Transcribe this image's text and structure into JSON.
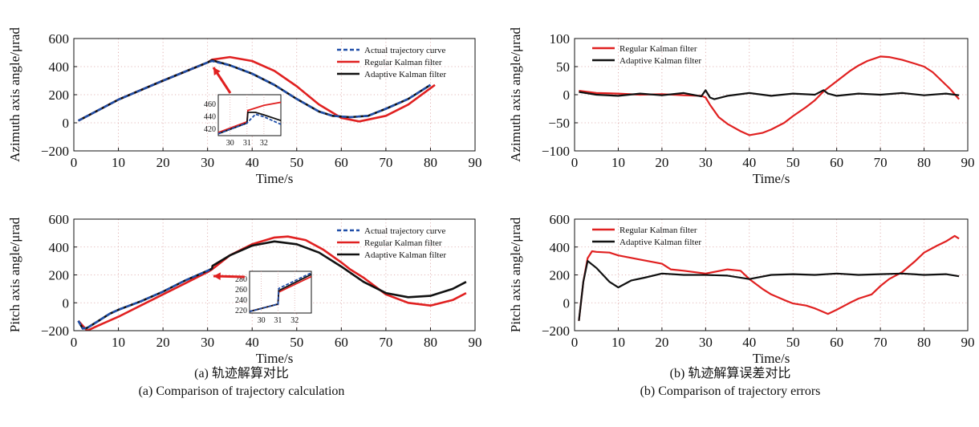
{
  "colors": {
    "actual": "#1f4ea8",
    "regular": "#e02020",
    "adaptive": "#111111",
    "grid": "#d9a0a0"
  },
  "captions": {
    "a_cn": "(a) 轨迹解算对比",
    "a_en": "(a) Comparison of trajectory calculation",
    "b_cn": "(b) 轨迹解算误差对比",
    "b_en": "(b) Comparison of trajectory errors"
  },
  "chart_data": [
    {
      "id": "a_top",
      "type": "line",
      "xlabel": "Time/s",
      "ylabel": "Azimuth axis angle/μrad",
      "xlim": [
        0,
        90
      ],
      "ylim": [
        -200,
        600
      ],
      "xticks": [
        0,
        10,
        20,
        30,
        40,
        50,
        60,
        70,
        80,
        90
      ],
      "yticks": [
        -200,
        0,
        200,
        400,
        600
      ],
      "legend": "top-right",
      "series": [
        {
          "name": "Actual trajectory curve",
          "style": "dashed",
          "color": "#1f4ea8",
          "x": [
            1,
            10,
            20,
            30,
            31,
            35,
            40,
            45,
            50,
            55,
            58,
            62,
            66,
            70,
            75,
            80
          ],
          "y": [
            15,
            165,
            300,
            430,
            440,
            410,
            350,
            270,
            170,
            80,
            50,
            40,
            50,
            100,
            170,
            270
          ]
        },
        {
          "name": "Regular Kalman filter",
          "style": "solid",
          "color": "#e02020",
          "x": [
            1,
            10,
            20,
            30,
            31,
            35,
            40,
            45,
            50,
            55,
            60,
            64,
            70,
            75,
            81
          ],
          "y": [
            15,
            165,
            300,
            430,
            450,
            468,
            440,
            370,
            260,
            130,
            35,
            10,
            50,
            130,
            270
          ]
        },
        {
          "name": "Adaptive Kalman filter",
          "style": "solid",
          "color": "#111111",
          "x": [
            1,
            10,
            20,
            30,
            31,
            35,
            40,
            45,
            50,
            55,
            58,
            62,
            66,
            70,
            75,
            80
          ],
          "y": [
            15,
            165,
            300,
            430,
            445,
            410,
            350,
            270,
            170,
            80,
            50,
            40,
            50,
            100,
            170,
            270
          ]
        }
      ],
      "inset": {
        "xlim": [
          29.3,
          33
        ],
        "ylim": [
          410,
          475
        ],
        "xticks": [
          30,
          31,
          32
        ],
        "yticks": [
          420,
          440,
          460
        ],
        "series": [
          {
            "name": "Actual trajectory curve",
            "x": [
              29.3,
              31,
              31.5,
              32,
              32.5,
              33
            ],
            "y": [
              413,
              430,
              444,
              440,
              434,
              428
            ]
          },
          {
            "name": "Regular Kalman filter",
            "x": [
              29.3,
              31,
              31.05,
              32,
              33
            ],
            "y": [
              415,
              432,
              450,
              458,
              463
            ]
          },
          {
            "name": "Adaptive Kalman filter",
            "x": [
              29.3,
              31,
              31.05,
              31.5,
              32,
              33
            ],
            "y": [
              413,
              430,
              447,
              447,
              443,
              434
            ]
          }
        ]
      }
    },
    {
      "id": "a_bottom",
      "type": "line",
      "xlabel": "Time/s",
      "ylabel": "Pitch axis angle/μrad",
      "xlim": [
        0,
        90
      ],
      "ylim": [
        -200,
        600
      ],
      "xticks": [
        0,
        10,
        20,
        30,
        40,
        50,
        60,
        70,
        80,
        90
      ],
      "yticks": [
        -200,
        0,
        200,
        400,
        600
      ],
      "legend": "top-right",
      "series": [
        {
          "name": "Actual trajectory curve",
          "style": "dashed",
          "color": "#1f4ea8",
          "x": [
            1,
            2,
            3,
            5,
            8,
            10,
            15,
            20,
            25,
            30,
            31
          ],
          "y": [
            -130,
            -185,
            -180,
            -140,
            -80,
            -50,
            10,
            80,
            160,
            230,
            245
          ]
        },
        {
          "name": "Regular Kalman filter",
          "style": "solid",
          "color": "#e02020",
          "x": [
            1,
            3,
            5,
            10,
            15,
            20,
            25,
            30,
            31,
            35,
            40,
            45,
            48,
            52,
            56,
            60,
            62,
            65,
            70,
            75,
            80,
            85,
            88
          ],
          "y": [
            -130,
            -200,
            -170,
            -100,
            -20,
            60,
            140,
            220,
            240,
            340,
            420,
            468,
            475,
            450,
            380,
            290,
            240,
            180,
            60,
            0,
            -20,
            20,
            70
          ]
        },
        {
          "name": "Adaptive Kalman filter",
          "style": "solid",
          "color": "#111111",
          "x": [
            1,
            2,
            3,
            5,
            8,
            10,
            15,
            20,
            25,
            30,
            31,
            31.1,
            35,
            40,
            45,
            50,
            55,
            60,
            65,
            70,
            75,
            80,
            85,
            88
          ],
          "y": [
            -130,
            -185,
            -180,
            -140,
            -80,
            -50,
            10,
            80,
            160,
            230,
            245,
            265,
            340,
            410,
            440,
            420,
            360,
            260,
            150,
            70,
            40,
            50,
            100,
            150
          ]
        }
      ],
      "inset": {
        "xlim": [
          29.3,
          33
        ],
        "ylim": [
          215,
          295
        ],
        "xticks": [
          30,
          31,
          32
        ],
        "yticks": [
          220,
          240,
          260,
          280
        ],
        "series": [
          {
            "name": "Actual trajectory curve",
            "x": [
              29.3,
              31,
              31.05,
              33
            ],
            "y": [
              218,
              232,
              262,
              292
            ]
          },
          {
            "name": "Regular Kalman filter",
            "x": [
              29.3,
              31,
              31.05,
              33
            ],
            "y": [
              218,
              232,
              255,
              285
            ]
          },
          {
            "name": "Adaptive Kalman filter",
            "x": [
              29.3,
              31,
              31.05,
              33
            ],
            "y": [
              218,
              232,
              258,
              289
            ]
          }
        ]
      }
    },
    {
      "id": "b_top",
      "type": "line",
      "xlabel": "Time/s",
      "ylabel": "Azimuth axis angle/μrad",
      "xlim": [
        0,
        90
      ],
      "ylim": [
        -100,
        100
      ],
      "xticks": [
        0,
        10,
        20,
        30,
        40,
        50,
        60,
        70,
        80,
        90
      ],
      "yticks": [
        -100,
        -50,
        0,
        50,
        100
      ],
      "legend": "top-left",
      "series": [
        {
          "name": "Regular Kalman filter",
          "style": "solid",
          "color": "#e02020",
          "x": [
            1,
            5,
            10,
            15,
            20,
            25,
            29,
            30,
            31,
            33,
            35,
            38,
            40,
            43,
            45,
            48,
            50,
            53,
            55,
            56,
            57,
            59,
            61,
            63,
            65,
            67,
            70,
            72,
            75,
            78,
            80,
            82,
            84,
            86,
            88
          ],
          "y": [
            7,
            3,
            2,
            0,
            1,
            -1,
            -2,
            -5,
            -18,
            -40,
            -52,
            -65,
            -72,
            -68,
            -62,
            -50,
            -38,
            -22,
            -10,
            -2,
            6,
            18,
            30,
            42,
            52,
            60,
            68,
            67,
            62,
            55,
            50,
            40,
            25,
            10,
            -8
          ]
        },
        {
          "name": "Adaptive Kalman filter",
          "style": "solid",
          "color": "#111111",
          "x": [
            1,
            5,
            10,
            15,
            20,
            25,
            29,
            30,
            31,
            32,
            35,
            40,
            45,
            50,
            55,
            57,
            58,
            60,
            65,
            70,
            75,
            80,
            85,
            88
          ],
          "y": [
            5,
            0,
            -2,
            2,
            -1,
            3,
            -3,
            8,
            -5,
            -8,
            -2,
            3,
            -2,
            2,
            0,
            8,
            2,
            -2,
            2,
            0,
            3,
            -1,
            2,
            -1
          ]
        }
      ]
    },
    {
      "id": "b_bottom",
      "type": "line",
      "xlabel": "Time/s",
      "ylabel": "Pitch axis angle/μrad",
      "xlim": [
        0,
        90
      ],
      "ylim": [
        -200,
        600
      ],
      "xticks": [
        0,
        10,
        20,
        30,
        40,
        50,
        60,
        70,
        80,
        90
      ],
      "yticks": [
        -200,
        0,
        200,
        400,
        600
      ],
      "legend": "top-left",
      "series": [
        {
          "name": "Regular Kalman filter",
          "style": "solid",
          "color": "#e02020",
          "x": [
            1,
            2,
            3,
            4,
            5,
            8,
            10,
            15,
            20,
            22,
            25,
            30,
            35,
            38,
            40,
            43,
            45,
            48,
            50,
            53,
            55,
            58,
            60,
            63,
            65,
            68,
            70,
            72,
            75,
            78,
            80,
            83,
            85,
            87,
            88
          ],
          "y": [
            -130,
            150,
            320,
            370,
            365,
            360,
            340,
            310,
            280,
            240,
            230,
            210,
            240,
            230,
            170,
            100,
            60,
            20,
            -5,
            -20,
            -40,
            -80,
            -50,
            0,
            30,
            60,
            120,
            170,
            220,
            300,
            360,
            410,
            440,
            480,
            460
          ]
        },
        {
          "name": "Adaptive Kalman filter",
          "style": "solid",
          "color": "#111111",
          "x": [
            1,
            2,
            3,
            5,
            8,
            10,
            13,
            16,
            20,
            25,
            30,
            35,
            40,
            45,
            50,
            55,
            60,
            65,
            70,
            75,
            80,
            85,
            88
          ],
          "y": [
            -130,
            150,
            300,
            250,
            150,
            110,
            160,
            180,
            210,
            200,
            200,
            195,
            170,
            200,
            205,
            200,
            210,
            200,
            205,
            210,
            200,
            205,
            190
          ]
        }
      ]
    }
  ]
}
